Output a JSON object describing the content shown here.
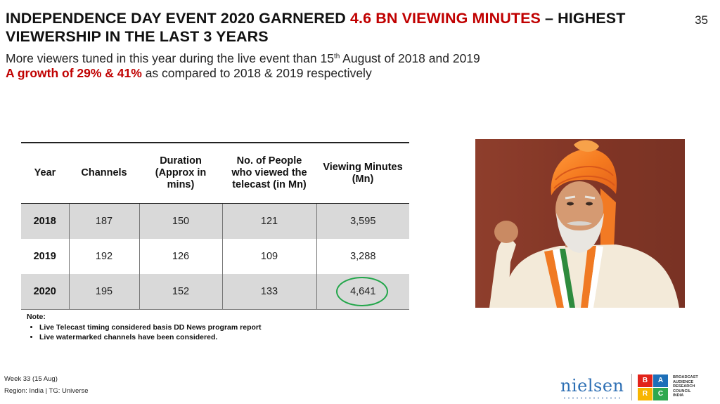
{
  "page_number": "35",
  "headline": {
    "part1": "INDEPENDENCE DAY EVENT 2020 GARNERED ",
    "accent": "4.6 BN VIEWING MINUTES",
    "part2": " – HIGHEST VIEWERSHIP IN THE LAST 3 YEARS"
  },
  "subline": {
    "pre": "More viewers tuned in this year during the live event than 15",
    "sup": "th",
    "post": " August of 2018 and 2019"
  },
  "subline2": {
    "accent": "A growth of 29% & 41%",
    "rest": " as compared to 2018 & 2019 respectively"
  },
  "table": {
    "headers": [
      "Year",
      "Channels",
      "Duration (Approx in mins)",
      "No. of People who viewed the telecast (in Mn)",
      "Viewing Minutes (Mn)"
    ],
    "rows": [
      [
        "2018",
        "187",
        "150",
        "121",
        "3,595"
      ],
      [
        "2019",
        "192",
        "126",
        "109",
        "3,288"
      ],
      [
        "2020",
        "195",
        "152",
        "133",
        "4,641"
      ]
    ],
    "highlight_color": "#22a64a"
  },
  "notes": {
    "title": "Note:",
    "items": [
      "Live Telecast timing considered basis DD News program report",
      "Live watermarked channels have been considered."
    ]
  },
  "footer": {
    "week": "Week 33 (15 Aug)",
    "region": "Region: India | TG: Universe"
  },
  "logos": {
    "nielsen": "nielsen",
    "barc_letters": [
      "B",
      "A",
      "R",
      "C"
    ],
    "barc_text": [
      "BROADCAST",
      "AUDIENCE",
      "RESEARCH",
      "COUNCIL",
      "INDIA"
    ]
  },
  "colors": {
    "accent": "#c00000",
    "shaded_row": "#d9d9d9"
  }
}
